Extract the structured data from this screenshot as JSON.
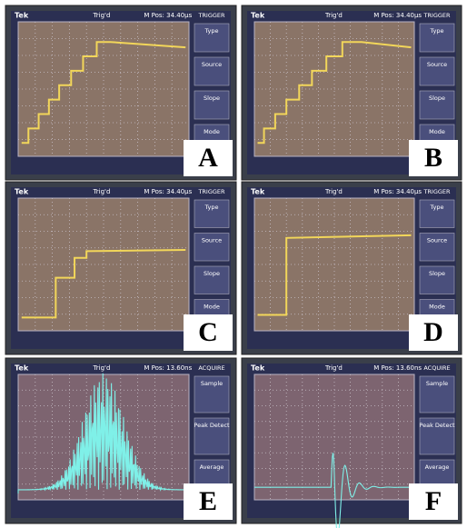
{
  "panels": [
    {
      "label": "A",
      "header": {
        "brand": "Tek",
        "status": "Trig'd",
        "position": "M Pos: 34.40µs"
      },
      "menu": {
        "title": "TRIGGER",
        "items": [
          "Type",
          "Source",
          "Slope",
          "Mode"
        ]
      }
    },
    {
      "label": "B",
      "header": {
        "brand": "Tek",
        "status": "Trig'd",
        "position": "M Pos: 34.40µs"
      },
      "menu": {
        "title": "TRIGGER",
        "items": [
          "Type",
          "Source",
          "Slope",
          "Mode"
        ]
      }
    },
    {
      "label": "C",
      "header": {
        "brand": "Tek",
        "status": "Trig'd",
        "position": "M Pos: 34.40µs"
      },
      "menu": {
        "title": "TRIGGER",
        "items": [
          "Type",
          "Source",
          "Slope",
          "Mode"
        ]
      }
    },
    {
      "label": "D",
      "header": {
        "brand": "Tek",
        "status": "Trig'd",
        "position": "M Pos: 34.40µs"
      },
      "menu": {
        "title": "TRIGGER",
        "items": [
          "Type",
          "Source",
          "Slope",
          "Mode"
        ]
      }
    },
    {
      "label": "E",
      "header": {
        "brand": "Tek",
        "status": "Trig'd",
        "position": "M Pos: 13.60ns"
      },
      "menu": {
        "title": "ACQUIRE",
        "items": [
          "Sample",
          "Peak Detect",
          "Average"
        ]
      }
    },
    {
      "label": "F",
      "header": {
        "brand": "Tek",
        "status": "Trig'd",
        "position": "M Pos: 13.60ns"
      },
      "menu": {
        "title": "ACQUIRE",
        "items": [
          "Sample",
          "Peak Detect",
          "Average"
        ]
      }
    }
  ]
}
